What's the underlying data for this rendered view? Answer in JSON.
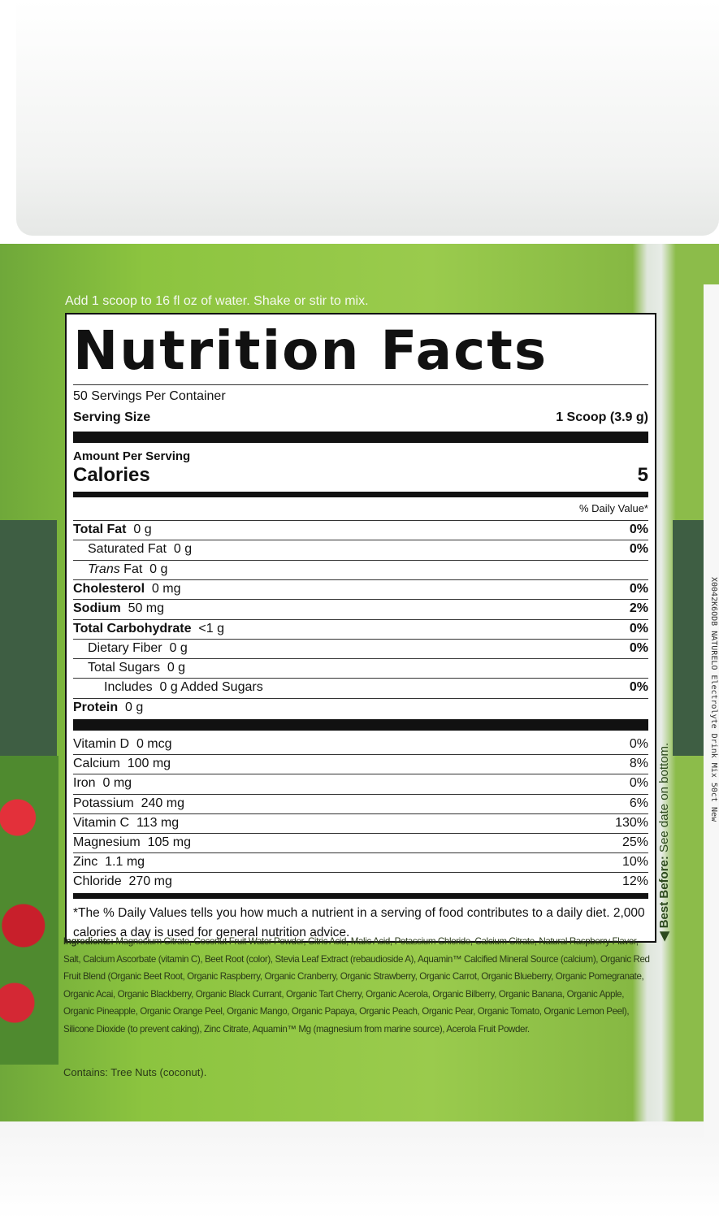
{
  "directions": "Add 1 scoop to 16 fl oz of water. Shake or stir to mix.",
  "label": {
    "title": "Nutrition Facts",
    "servings": "50 Servings Per Container",
    "serving_size_label": "Serving Size",
    "serving_size": "1 Scoop (3.9 g)",
    "amount_per_serving": "Amount Per Serving",
    "calories_label": "Calories",
    "calories": "5",
    "dv_header": "% Daily Value*",
    "rows": [
      {
        "name": "Total Fat",
        "amount": "0 g",
        "dv": "0%",
        "bold": true,
        "indent": 0
      },
      {
        "name": "Saturated Fat",
        "amount": "0 g",
        "dv": "0%",
        "bold": false,
        "indent": 1
      },
      {
        "name": "Trans Fat",
        "amount": "0 g",
        "dv": "",
        "bold": false,
        "indent": 1
      },
      {
        "name": "Cholesterol",
        "amount": "0 mg",
        "dv": "0%",
        "bold": true,
        "indent": 0
      },
      {
        "name": "Sodium",
        "amount": "50 mg",
        "dv": "2%",
        "bold": true,
        "indent": 0
      },
      {
        "name": "Total Carbohydrate",
        "amount": "<1 g",
        "dv": "0%",
        "bold": true,
        "indent": 0
      },
      {
        "name": "Dietary Fiber",
        "amount": "0 g",
        "dv": "0%",
        "bold": false,
        "indent": 1
      },
      {
        "name": "Total Sugars",
        "amount": "0 g",
        "dv": "",
        "bold": false,
        "indent": 1
      },
      {
        "name": "Includes",
        "amount": "0 g Added Sugars",
        "dv": "0%",
        "bold": false,
        "indent": 2
      },
      {
        "name": "Protein",
        "amount": "0 g",
        "dv": "",
        "bold": true,
        "indent": 0
      }
    ],
    "vitamins": [
      {
        "name": "Vitamin D",
        "amount": "0 mcg",
        "dv": "0%"
      },
      {
        "name": "Calcium",
        "amount": "100 mg",
        "dv": "8%"
      },
      {
        "name": "Iron",
        "amount": "0 mg",
        "dv": "0%"
      },
      {
        "name": "Potassium",
        "amount": "240 mg",
        "dv": "6%"
      },
      {
        "name": "Vitamin C",
        "amount": "113 mg",
        "dv": "130%"
      },
      {
        "name": "Magnesium",
        "amount": "105 mg",
        "dv": "25%"
      },
      {
        "name": "Zinc",
        "amount": "1.1 mg",
        "dv": "10%"
      },
      {
        "name": "Chloride",
        "amount": "270 mg",
        "dv": "12%"
      }
    ],
    "footnote": "*The % Daily Values tells you how much a nutrient in a serving of food contributes to a daily diet. 2,000 calories a day is used for general nutrition advice."
  },
  "ingredients_label": "Ingredients:",
  "ingredients": "Magnesium Citrate, Coconut Fruit Water Powder, Citric Acid, Malic Acid, Potassium Chloride, Calcium Citrate, Natural Raspberry Flavor, Salt, Calcium Ascorbate (vitamin C), Beet Root (color), Stevia Leaf Extract (rebaudioside A), Aquamin™ Calcified Mineral Source (calcium), Organic Red Fruit Blend (Organic Beet Root, Organic Raspberry, Organic Cranberry, Organic Strawberry, Organic Carrot, Organic Blueberry, Organic Pomegranate, Organic Acai, Organic Blackberry, Organic Black Currant, Organic Tart Cherry, Organic Acerola, Organic Bilberry, Organic Banana, Organic Apple, Organic Pineapple, Organic Orange Peel, Organic Mango, Organic Papaya, Organic Peach, Organic Pear, Organic Tomato, Organic Lemon Peel), Silicone Dioxide (to prevent caking), Zinc Citrate, Aquamin™ Mg (magnesium from marine source), Acerola Fruit Powder.",
  "contains": "Contains: Tree Nuts (coconut).",
  "best_before_label": "◀ Best Before:",
  "best_before": "See date on bottom.",
  "barcode_text": "X0042K6ODB   NATURELO Electrolyte Drink Mix 50ct New"
}
